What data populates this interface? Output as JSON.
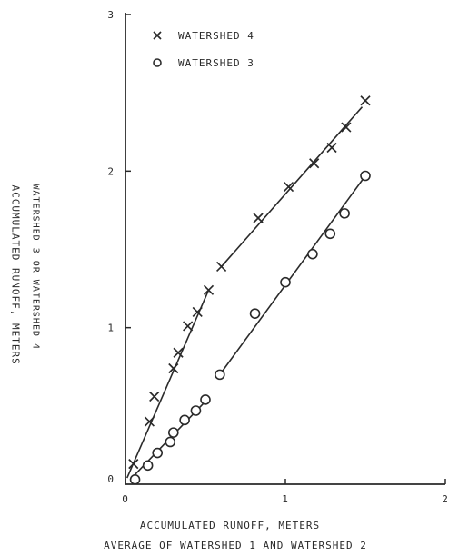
{
  "chart_data": {
    "type": "scatter",
    "xlabel": "ACCUMULATED RUNOFF, METERS",
    "xlabel2": "AVERAGE OF WATERSHED 1 AND WATERSHED 2",
    "ylabel": "ACCUMULATED RUNOFF, METERS",
    "ylabel2": "WATERSHED 3 OR WATERSHED 4",
    "xlim": [
      0,
      2
    ],
    "ylim": [
      0,
      3
    ],
    "xticks": [
      "0",
      "1",
      "2"
    ],
    "yticks": [
      "0",
      "1",
      "2",
      "3"
    ],
    "legend_position": "top-left",
    "series": [
      {
        "name": "WATERSHED 4",
        "marker": "x",
        "x": [
          0.05,
          0.15,
          0.18,
          0.3,
          0.33,
          0.39,
          0.45,
          0.52,
          0.6,
          0.83,
          1.02,
          1.18,
          1.29,
          1.38,
          1.5
        ],
        "y": [
          0.13,
          0.4,
          0.56,
          0.74,
          0.84,
          1.01,
          1.1,
          1.24,
          1.39,
          1.7,
          1.9,
          2.05,
          2.15,
          2.28,
          2.45
        ],
        "fit_segments": [
          {
            "x": [
              0.01,
              0.52
            ],
            "y": [
              0.04,
              1.24
            ]
          },
          {
            "x": [
              0.6,
              1.48
            ],
            "y": [
              1.39,
              2.41
            ]
          }
        ]
      },
      {
        "name": "WATERSHED 3",
        "marker": "o",
        "x": [
          0.06,
          0.14,
          0.2,
          0.28,
          0.3,
          0.37,
          0.44,
          0.5,
          0.59,
          0.81,
          1.0,
          1.17,
          1.28,
          1.37,
          1.5
        ],
        "y": [
          0.03,
          0.12,
          0.2,
          0.27,
          0.33,
          0.41,
          0.47,
          0.54,
          0.7,
          1.09,
          1.29,
          1.47,
          1.6,
          1.73,
          1.97
        ],
        "fit_segments": [
          {
            "x": [
              0.03,
              0.52
            ],
            "y": [
              0.03,
              0.55
            ]
          },
          {
            "x": [
              0.59,
              1.5
            ],
            "y": [
              0.7,
              1.97
            ]
          }
        ]
      }
    ],
    "colors": {
      "ink": "#2a2a2a",
      "background": "#ffffff"
    }
  }
}
